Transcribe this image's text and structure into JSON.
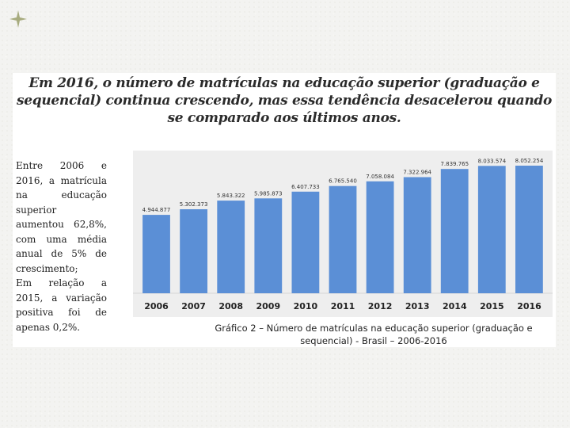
{
  "slide": {
    "title": "Em 2016, o número de matrículas na educação superior (graduação e sequencial) continua crescendo, mas essa tendência desacelerou quando se comparado aos últimos anos.",
    "paragraphs": [
      "Entre 2006 e 2016, a matrícula na educação superior aumentou 62,8%, com uma média anual de 5% de crescimento;",
      "Em relação a 2015, a variação positiva foi de apenas 0,2%."
    ],
    "caption": "Gráfico 2 – Número de matrículas na educação superior (graduação e sequencial) - Brasil – 2006-2016"
  },
  "colors": {
    "bar": "#5b8fd6",
    "plot_bg": "#eeeeee",
    "deco": "#a7ab7e"
  },
  "chart_data": {
    "type": "bar",
    "title": "Número de matrículas na educação superior (graduação e sequencial) - Brasil – 2006-2016",
    "xlabel": "",
    "ylabel": "",
    "categories": [
      "2006",
      "2007",
      "2008",
      "2009",
      "2010",
      "2011",
      "2012",
      "2013",
      "2014",
      "2015",
      "2016"
    ],
    "values": [
      4944877,
      5302373,
      5843322,
      5985873,
      6407733,
      6765540,
      7058084,
      7322964,
      7839765,
      8033574,
      8052254
    ],
    "data_labels": [
      "4.944.877",
      "5.302.373",
      "5.843.322",
      "5.985.873",
      "6.407.733",
      "6.765.540",
      "7.058.084",
      "7.322.964",
      "7.839.765",
      "8.033.574",
      "8.052.254"
    ],
    "ylim": [
      0,
      8700000
    ],
    "grid": false,
    "legend": "none"
  }
}
